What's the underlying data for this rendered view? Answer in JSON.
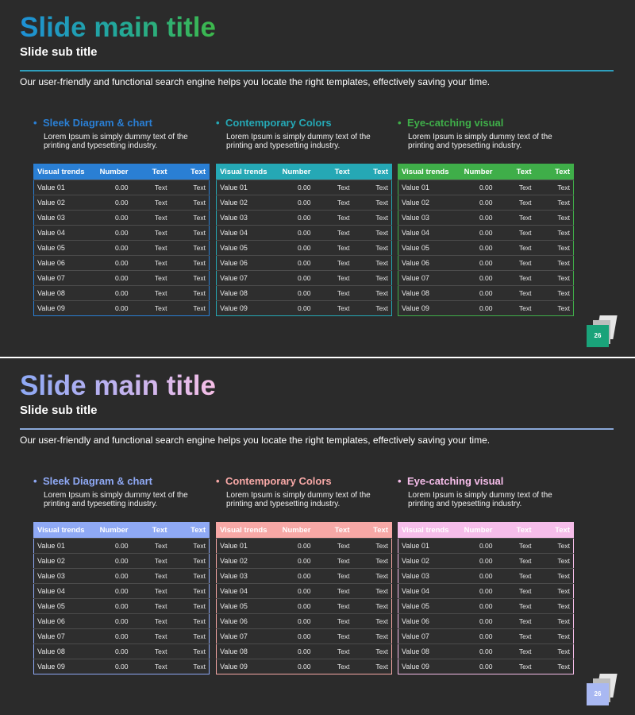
{
  "slides": [
    {
      "title": "Slide main title",
      "subtitle": "Slide sub title",
      "description": "Our user-friendly and functional search engine helps you locate the right templates, effectively saving your time.",
      "page_number": "26",
      "columns": [
        {
          "heading": "Sleek Diagram & chart",
          "text": "Lorem Ipsum is simply dummy text of the printing and typesetting industry.",
          "color": "#2a7fd4"
        },
        {
          "heading": "Contemporary Colors",
          "text": "Lorem Ipsum is simply dummy text of the printing and typesetting industry.",
          "color": "#25a8b5"
        },
        {
          "heading": "Eye-catching visual",
          "text": "Lorem Ipsum is simply dummy text of the printing and typesetting industry.",
          "color": "#3fae49"
        }
      ]
    },
    {
      "title": "Slide main title",
      "subtitle": "Slide sub title",
      "description": "Our user-friendly and functional search engine helps you locate the right templates, effectively saving your time.",
      "page_number": "26",
      "columns": [
        {
          "heading": "Sleek Diagram & chart",
          "text": "Lorem Ipsum is simply dummy text of the printing and typesetting industry.",
          "color": "#8fa9f5"
        },
        {
          "heading": "Contemporary Colors",
          "text": "Lorem Ipsum is simply dummy text of the printing and typesetting industry.",
          "color": "#f7a8a6"
        },
        {
          "heading": "Eye-catching visual",
          "text": "Lorem Ipsum is simply dummy text of the printing and typesetting industry.",
          "color": "#f6bdea"
        }
      ]
    }
  ],
  "table": {
    "headers": [
      "Visual trends",
      "Number",
      "Text",
      "Text"
    ],
    "rows": [
      [
        "Value 01",
        "0.00",
        "Text",
        "Text"
      ],
      [
        "Value 02",
        "0.00",
        "Text",
        "Text"
      ],
      [
        "Value 03",
        "0.00",
        "Text",
        "Text"
      ],
      [
        "Value 04",
        "0.00",
        "Text",
        "Text"
      ],
      [
        "Value 05",
        "0.00",
        "Text",
        "Text"
      ],
      [
        "Value 06",
        "0.00",
        "Text",
        "Text"
      ],
      [
        "Value 07",
        "0.00",
        "Text",
        "Text"
      ],
      [
        "Value 08",
        "0.00",
        "Text",
        "Text"
      ],
      [
        "Value 09",
        "0.00",
        "Text",
        "Text"
      ]
    ]
  },
  "colors": {
    "slide_background": "#2b2b2b",
    "slide1_page_badge": "#1aa37a",
    "slide2_page_badge": "#a9b8f2"
  }
}
